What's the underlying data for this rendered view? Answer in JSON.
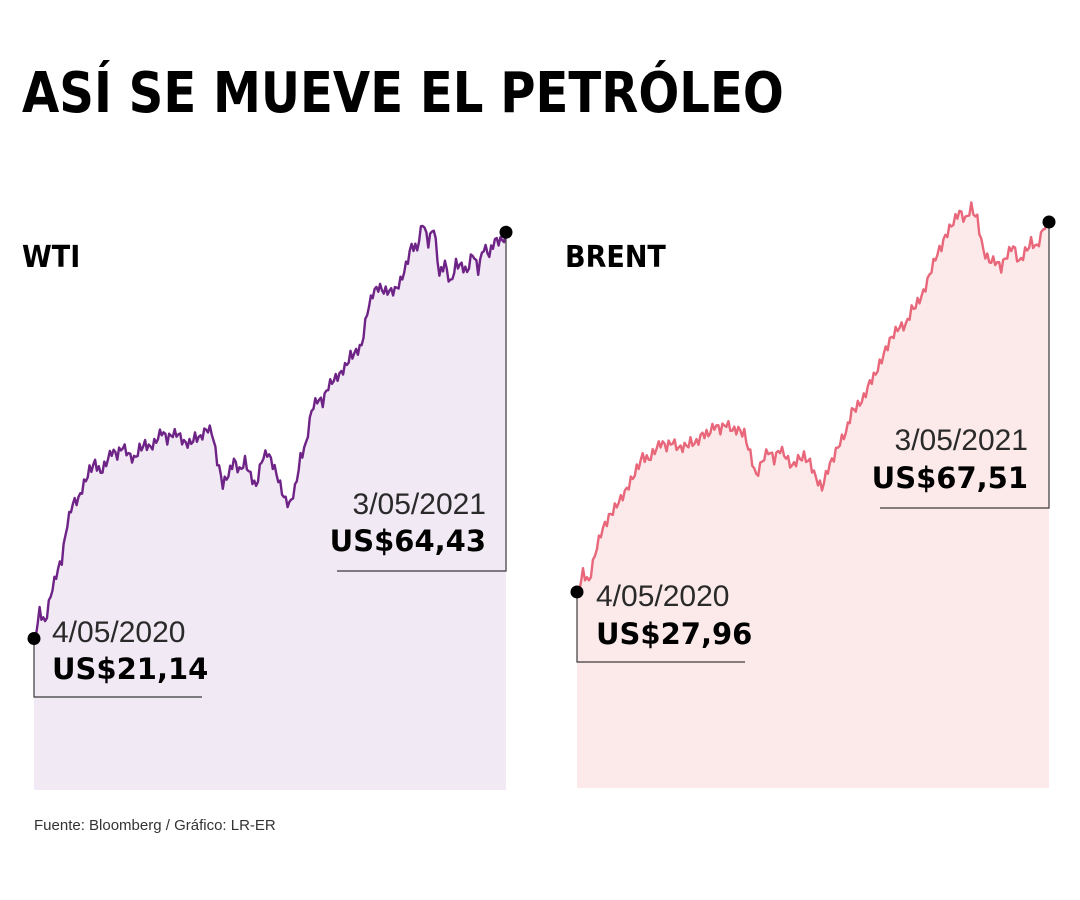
{
  "title": "ASÍ SE MUEVE EL PETRÓLEO",
  "source": "Fuente: Bloomberg / Gráfico: LR-ER",
  "colors": {
    "wti_line": "#6e2386",
    "wti_fill": "#f1e9f4",
    "brent_line": "#e8677a",
    "brent_fill": "#fceaea",
    "leader": "#3a3a3a",
    "marker": "#000000"
  },
  "chart_data": [
    {
      "type": "area",
      "name": "WTI",
      "title": "WTI",
      "start": {
        "date": "4/05/2020",
        "label": "US$21,14",
        "value": 21.14
      },
      "end": {
        "date": "3/05/2021",
        "label": "US$64,43",
        "value": 64.43
      },
      "ylim": [
        5,
        70
      ],
      "values": [
        21.14,
        24.5,
        23.0,
        25.6,
        27.5,
        29.0,
        33.0,
        35.5,
        36.2,
        38.1,
        39.6,
        40.2,
        38.8,
        39.5,
        40.6,
        40.2,
        41.4,
        40.9,
        40.6,
        41.9,
        42.3,
        41.6,
        42.0,
        42.8,
        41.8,
        42.6,
        42.9,
        42.3,
        42.4,
        43.1,
        42.8,
        43.4,
        42.9,
        39.6,
        37.1,
        38.4,
        40.3,
        39.4,
        40.6,
        38.9,
        37.4,
        39.9,
        40.5,
        39.2,
        37.8,
        36.2,
        35.7,
        37.6,
        40.9,
        42.1,
        45.4,
        46.2,
        45.8,
        47.6,
        48.6,
        49.4,
        50.5,
        51.8,
        52.0,
        52.4,
        55.6,
        57.4,
        58.1,
        57.9,
        58.2,
        58.6,
        59.7,
        61.3,
        63.2,
        62.5,
        65.1,
        62.8,
        64.6,
        59.8,
        61.4,
        59.4,
        61.6,
        61.2,
        60.2,
        61.9,
        59.9,
        62.4,
        61.8,
        63.7,
        63.9,
        64.43
      ]
    },
    {
      "type": "area",
      "name": "BRENT",
      "title": "BRENT",
      "start": {
        "date": "4/05/2020",
        "label": "US$27,96",
        "value": 27.96
      },
      "end": {
        "date": "3/05/2021",
        "label": "US$67,51",
        "value": 67.51
      },
      "ylim": [
        7,
        72
      ],
      "values": [
        27.96,
        30.5,
        29.2,
        31.8,
        33.8,
        35.0,
        36.2,
        37.5,
        38.8,
        40.3,
        41.6,
        42.8,
        42.1,
        42.7,
        43.4,
        43.0,
        43.8,
        43.4,
        43.9,
        44.5,
        44.3,
        45.0,
        44.6,
        45.3,
        44.8,
        45.6,
        45.2,
        45.6,
        45.4,
        43.2,
        40.6,
        41.9,
        42.7,
        41.6,
        42.8,
        42.2,
        41.5,
        42.6,
        43.0,
        42.2,
        40.2,
        38.8,
        40.6,
        41.9,
        43.6,
        45.0,
        47.6,
        48.4,
        49.2,
        50.6,
        51.2,
        52.4,
        53.8,
        55.1,
        56.2,
        56.6,
        58.6,
        59.4,
        60.3,
        61.9,
        63.4,
        64.4,
        65.9,
        67.2,
        68.7,
        68.1,
        69.6,
        68.3,
        64.6,
        63.2,
        62.9,
        62.1,
        63.6,
        64.9,
        63.4,
        64.8,
        65.9,
        65.1,
        66.7,
        67.51
      ]
    }
  ]
}
